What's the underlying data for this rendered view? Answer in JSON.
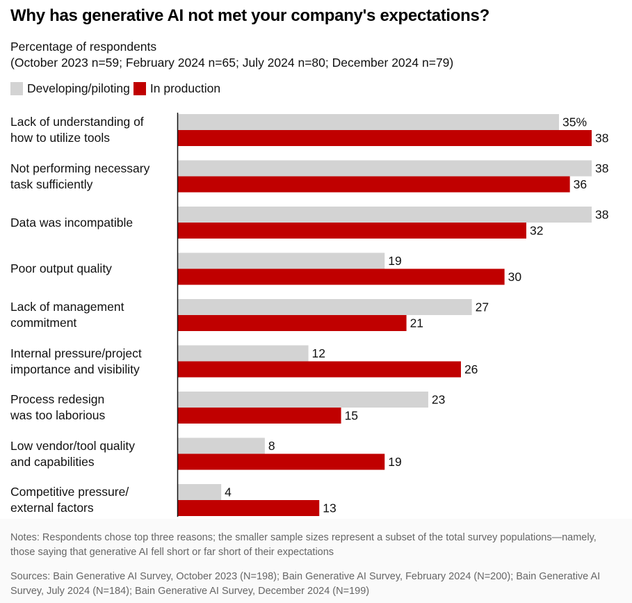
{
  "chart_data": {
    "type": "bar",
    "orientation": "horizontal",
    "title": "Why has generative AI not met your company's expectations?",
    "subtitle_line1": "Percentage of respondents",
    "subtitle_line2": "(October 2023 n=59; February 2024 n=65; July 2024 n=80; December 2024 n=79)",
    "xlabel": "",
    "ylabel": "",
    "xlim": [
      0,
      38
    ],
    "grid": false,
    "legend_position": "top-left",
    "value_suffix_first": "%",
    "categories": [
      [
        "Lack of understanding of",
        "how to utilize tools"
      ],
      [
        "Not performing necessary",
        "task sufficiently"
      ],
      [
        "Data was incompatible"
      ],
      [
        "Poor output quality"
      ],
      [
        "Lack of management",
        "commitment"
      ],
      [
        "Internal pressure/project",
        "importance and visibility"
      ],
      [
        "Process redesign",
        "was too laborious"
      ],
      [
        "Low vendor/tool quality",
        "and capabilities"
      ],
      [
        "Competitive pressure/",
        "external factors"
      ]
    ],
    "series": [
      {
        "name": "Developing/piloting",
        "color": "#d3d3d3",
        "values": [
          35,
          38,
          38,
          19,
          27,
          12,
          23,
          8,
          4
        ]
      },
      {
        "name": "In production",
        "color": "#c00000",
        "values": [
          38,
          36,
          32,
          30,
          21,
          26,
          15,
          19,
          13
        ]
      }
    ]
  },
  "notes": "Notes: Respondents chose top three reasons; the smaller sample sizes represent a subset of the total survey populations—namely, those saying that generative AI fell short or far short of their expectations",
  "sources": "Sources: Bain Generative AI Survey, October 2023 (N=198); Bain Generative AI Survey, February 2024 (N=200); Bain Generative AI Survey, July 2024 (N=184); Bain Generative AI Survey, December 2024 (N=199)"
}
